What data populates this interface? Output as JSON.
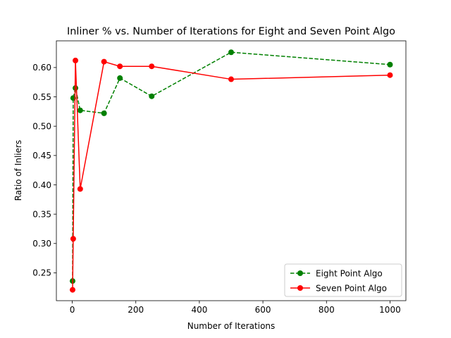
{
  "chart_data": {
    "type": "line",
    "title": "Inliner % vs. Number of Iterations for Eight and Seven Point Algo",
    "xlabel": "Number of Iterations",
    "ylabel": "Ratio of Inliers",
    "xlim": [
      -50,
      1050
    ],
    "ylim": [
      0.2025,
      0.6455
    ],
    "xticks": [
      0,
      200,
      400,
      600,
      800,
      1000
    ],
    "yticks": [
      0.25,
      0.3,
      0.35,
      0.4,
      0.45,
      0.5,
      0.55,
      0.6
    ],
    "xtick_labels": [
      "0",
      "200",
      "400",
      "600",
      "800",
      "1000"
    ],
    "ytick_labels": [
      "0.25",
      "0.30",
      "0.35",
      "0.40",
      "0.45",
      "0.50",
      "0.55",
      "0.60"
    ],
    "grid": false,
    "legend_position": "lower-right",
    "series": [
      {
        "name": "Eight Point Algo",
        "color": "#008000",
        "linestyle": "dashed",
        "marker": "circle",
        "x": [
          1,
          3,
          10,
          25,
          100,
          150,
          250,
          500,
          1000
        ],
        "y": [
          0.236,
          0.548,
          0.565,
          0.527,
          0.522,
          0.582,
          0.551,
          0.626,
          0.605
        ]
      },
      {
        "name": "Seven Point Algo",
        "color": "#ff0000",
        "linestyle": "solid",
        "marker": "circle",
        "x": [
          1,
          3,
          10,
          25,
          100,
          150,
          250,
          500,
          1000
        ],
        "y": [
          0.221,
          0.308,
          0.612,
          0.393,
          0.61,
          0.602,
          0.602,
          0.58,
          0.587
        ]
      }
    ]
  }
}
